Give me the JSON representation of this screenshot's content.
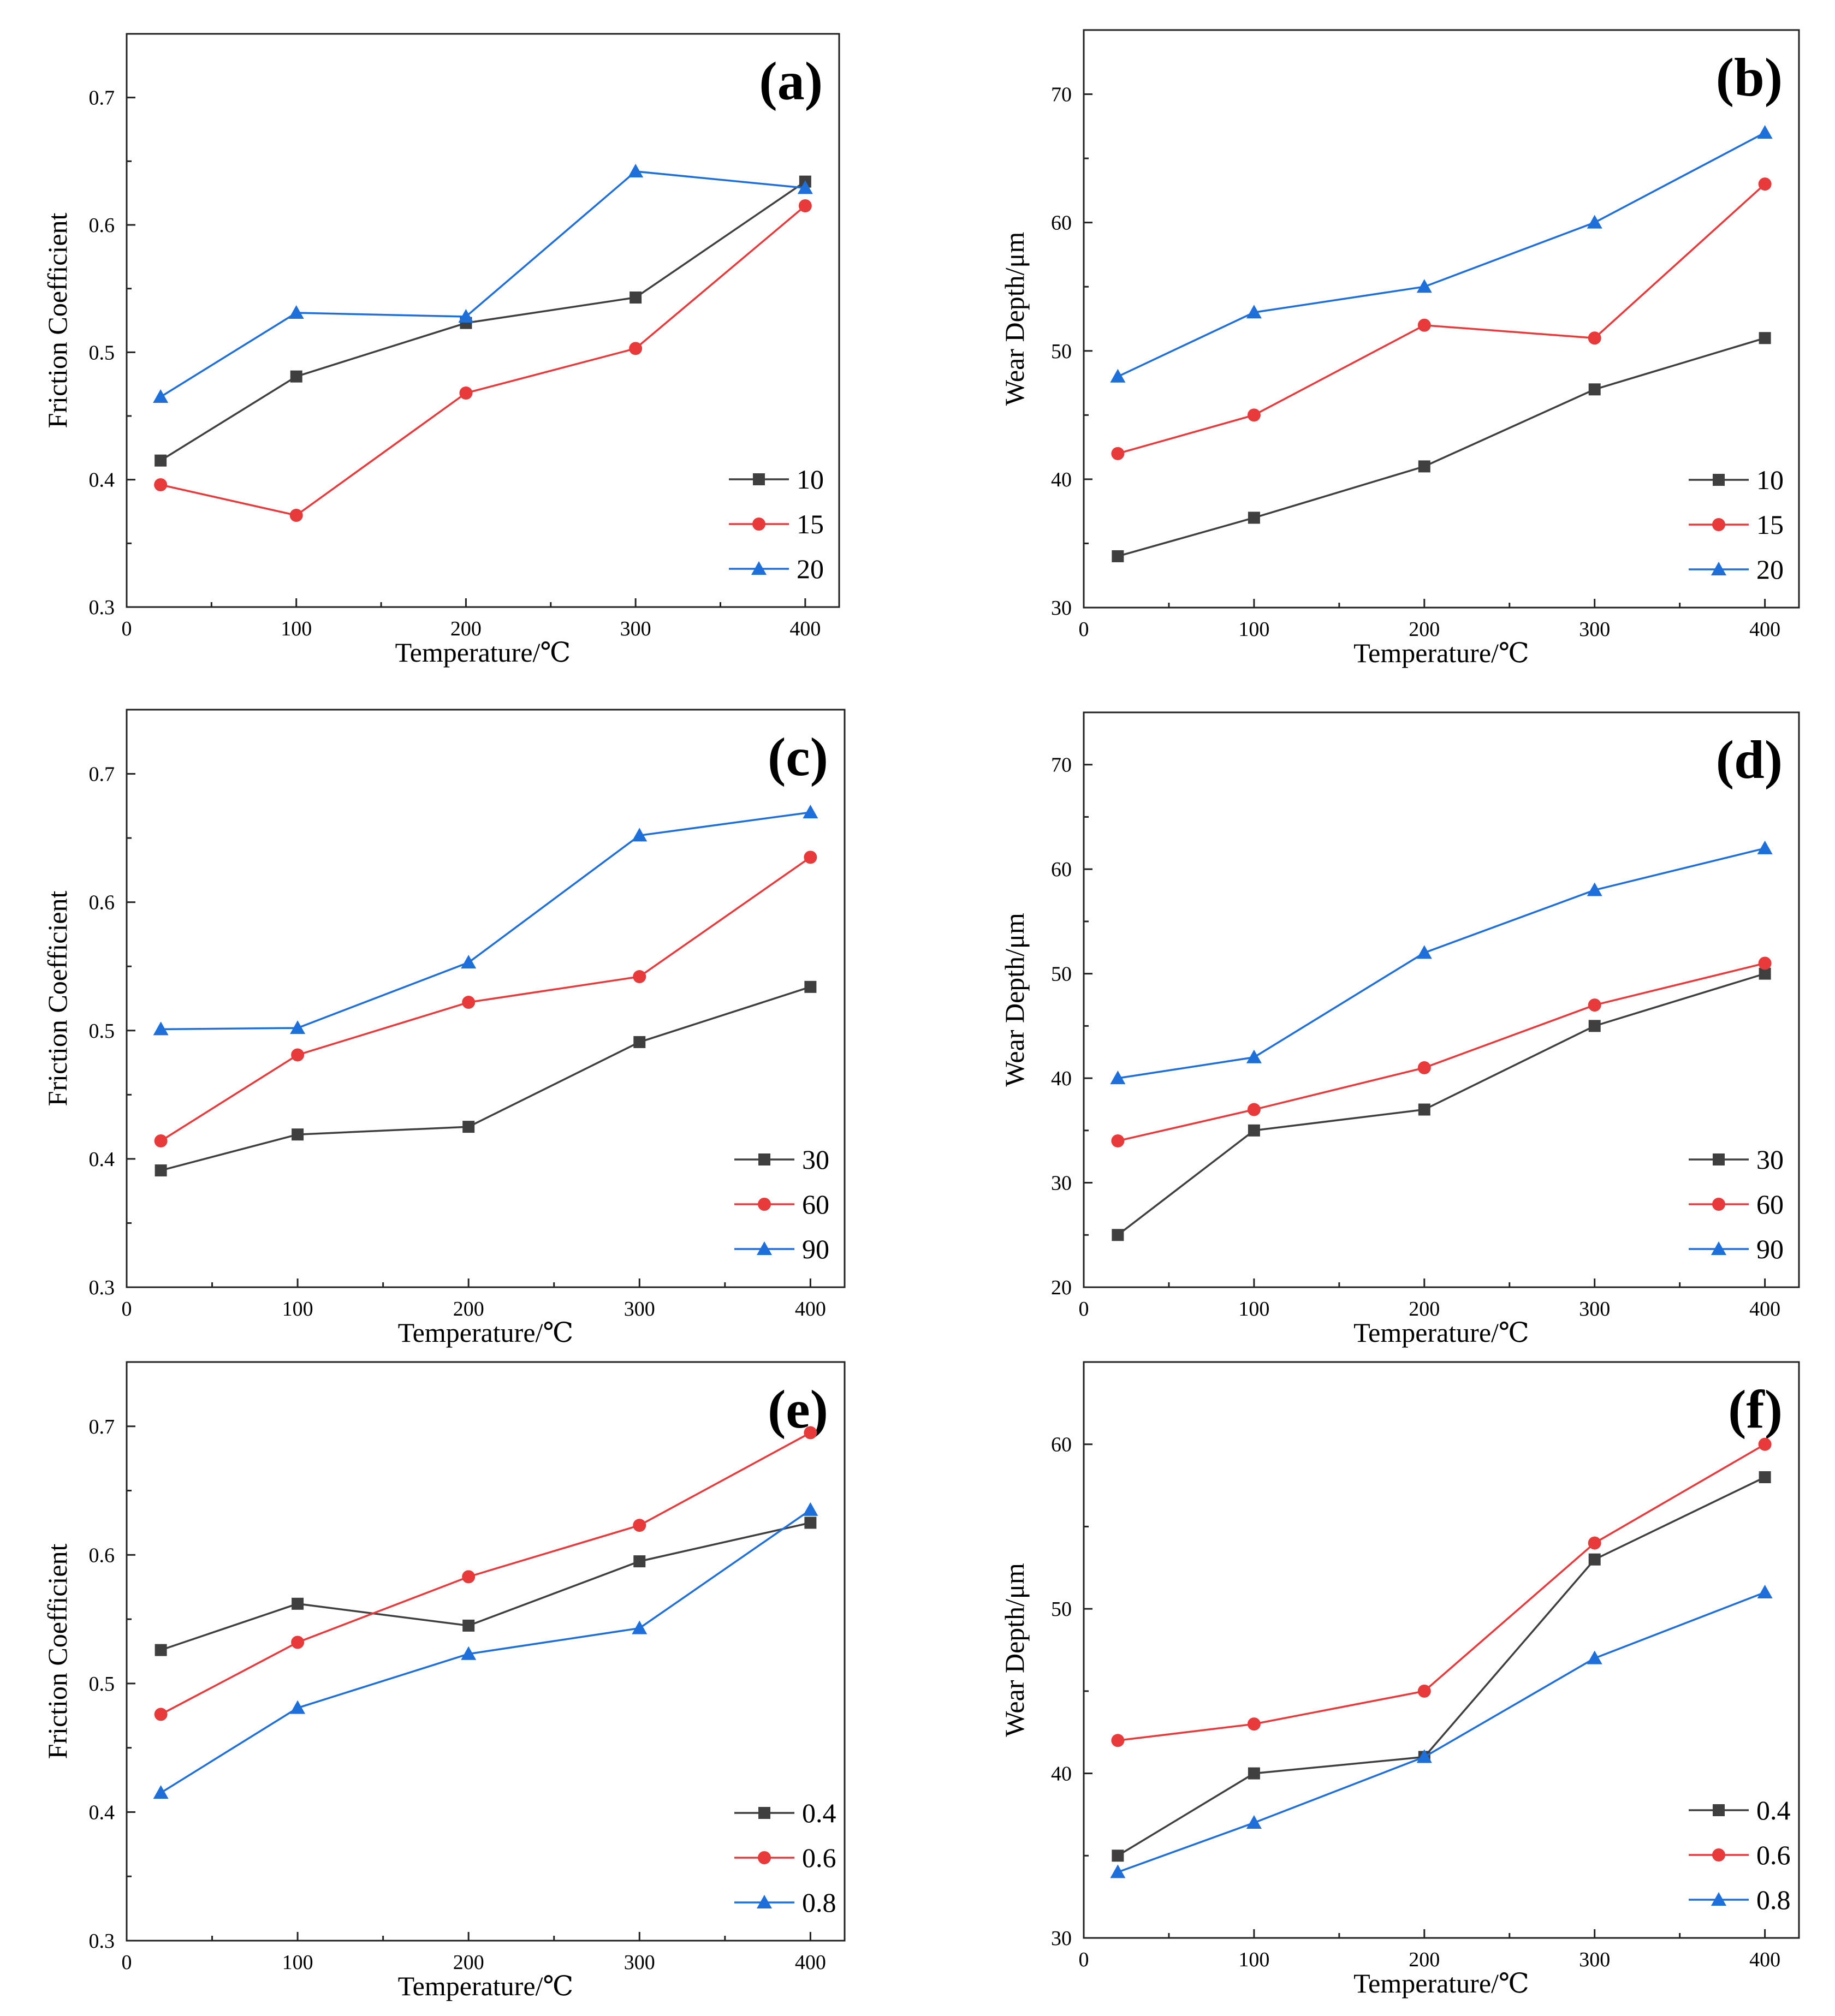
{
  "figure": {
    "background": "#ffffff"
  },
  "colors": {
    "black": "#3f3f3f",
    "red": "#e8393b",
    "blue": "#1e6fd9"
  },
  "chart_data": [
    {
      "panel": "(a)",
      "type": "line",
      "xlabel": "Temperature/℃",
      "ylabel": "Friction Coefficient",
      "xlim": [
        0,
        420
      ],
      "ylim": [
        0.3,
        0.75
      ],
      "xticks": [
        0,
        100,
        200,
        300,
        400
      ],
      "xtick_labels": [
        "0",
        "100",
        "200",
        "300",
        "400"
      ],
      "yticks": [
        0.3,
        0.4,
        0.5,
        0.6,
        0.7
      ],
      "ytick_labels": [
        "0.3",
        "0.4",
        "0.5",
        "0.6",
        "0.7"
      ],
      "x": [
        20,
        100,
        200,
        300,
        400
      ],
      "legend_position": "bottom-right",
      "series": [
        {
          "name": "10",
          "marker": "square",
          "color": "#3f3f3f",
          "values": [
            0.415,
            0.481,
            0.523,
            0.543,
            0.634
          ]
        },
        {
          "name": "15",
          "marker": "circle",
          "color": "#e8393b",
          "values": [
            0.396,
            0.372,
            0.468,
            0.503,
            0.615
          ]
        },
        {
          "name": "20",
          "marker": "triangle",
          "color": "#1e6fd9",
          "values": [
            0.465,
            0.531,
            0.528,
            0.642,
            0.629
          ]
        }
      ]
    },
    {
      "panel": "(b)",
      "type": "line",
      "xlabel": "Temperature/℃",
      "ylabel": "Wear Depth/μm",
      "xlim": [
        0,
        420
      ],
      "ylim": [
        30,
        75
      ],
      "xticks": [
        0,
        100,
        200,
        300,
        400
      ],
      "xtick_labels": [
        "0",
        "100",
        "200",
        "300",
        "400"
      ],
      "yticks": [
        30,
        40,
        50,
        60,
        70
      ],
      "ytick_labels": [
        "30",
        "40",
        "50",
        "60",
        "70"
      ],
      "x": [
        20,
        100,
        200,
        300,
        400
      ],
      "legend_position": "bottom-right",
      "series": [
        {
          "name": "10",
          "marker": "square",
          "color": "#3f3f3f",
          "values": [
            34,
            37,
            41,
            47,
            51
          ]
        },
        {
          "name": "15",
          "marker": "circle",
          "color": "#e8393b",
          "values": [
            42,
            45,
            52,
            51,
            63
          ]
        },
        {
          "name": "20",
          "marker": "triangle",
          "color": "#1e6fd9",
          "values": [
            48,
            53,
            55,
            60,
            67
          ]
        }
      ]
    },
    {
      "panel": "(c)",
      "type": "line",
      "xlabel": "Temperature/℃",
      "ylabel": "Friction Coefficient",
      "xlim": [
        0,
        420
      ],
      "ylim": [
        0.3,
        0.75
      ],
      "xticks": [
        0,
        100,
        200,
        300,
        400
      ],
      "xtick_labels": [
        "0",
        "100",
        "200",
        "300",
        "400"
      ],
      "yticks": [
        0.3,
        0.4,
        0.5,
        0.6,
        0.7
      ],
      "ytick_labels": [
        "0.3",
        "0.4",
        "0.5",
        "0.6",
        "0.7"
      ],
      "x": [
        20,
        100,
        200,
        300,
        400
      ],
      "legend_position": "bottom-right",
      "series": [
        {
          "name": "30",
          "marker": "square",
          "color": "#3f3f3f",
          "values": [
            0.391,
            0.419,
            0.425,
            0.491,
            0.534
          ]
        },
        {
          "name": "60",
          "marker": "circle",
          "color": "#e8393b",
          "values": [
            0.414,
            0.481,
            0.522,
            0.542,
            0.635
          ]
        },
        {
          "name": "90",
          "marker": "triangle",
          "color": "#1e6fd9",
          "values": [
            0.501,
            0.502,
            0.553,
            0.652,
            0.67
          ]
        }
      ]
    },
    {
      "panel": "(d)",
      "type": "line",
      "xlabel": "Temperature/℃",
      "ylabel": "Wear Depth/μm",
      "xlim": [
        0,
        420
      ],
      "ylim": [
        20,
        75
      ],
      "xticks": [
        0,
        100,
        200,
        300,
        400
      ],
      "xtick_labels": [
        "0",
        "100",
        "200",
        "300",
        "400"
      ],
      "yticks": [
        20,
        30,
        40,
        50,
        60,
        70
      ],
      "ytick_labels": [
        "20",
        "30",
        "40",
        "50",
        "60",
        "70"
      ],
      "x": [
        20,
        100,
        200,
        300,
        400
      ],
      "legend_position": "bottom-right",
      "series": [
        {
          "name": "30",
          "marker": "square",
          "color": "#3f3f3f",
          "values": [
            25,
            35,
            37,
            45,
            50
          ]
        },
        {
          "name": "60",
          "marker": "circle",
          "color": "#e8393b",
          "values": [
            34,
            37,
            41,
            47,
            51
          ]
        },
        {
          "name": "90",
          "marker": "triangle",
          "color": "#1e6fd9",
          "values": [
            40,
            42,
            52,
            58,
            62
          ]
        }
      ]
    },
    {
      "panel": "(e)",
      "type": "line",
      "xlabel": "Temperature/℃",
      "ylabel": "Friction Coefficient",
      "xlim": [
        0,
        420
      ],
      "ylim": [
        0.3,
        0.75
      ],
      "xticks": [
        0,
        100,
        200,
        300,
        400
      ],
      "xtick_labels": [
        "0",
        "100",
        "200",
        "300",
        "400"
      ],
      "yticks": [
        0.3,
        0.4,
        0.5,
        0.6,
        0.7
      ],
      "ytick_labels": [
        "0.3",
        "0.4",
        "0.5",
        "0.6",
        "0.7"
      ],
      "x": [
        20,
        100,
        200,
        300,
        400
      ],
      "legend_position": "bottom-right",
      "series": [
        {
          "name": "0.4",
          "marker": "square",
          "color": "#3f3f3f",
          "values": [
            0.526,
            0.562,
            0.545,
            0.595,
            0.625
          ]
        },
        {
          "name": "0.6",
          "marker": "circle",
          "color": "#e8393b",
          "values": [
            0.476,
            0.532,
            0.583,
            0.623,
            0.695
          ]
        },
        {
          "name": "0.8",
          "marker": "triangle",
          "color": "#1e6fd9",
          "values": [
            0.415,
            0.481,
            0.523,
            0.543,
            0.635
          ]
        }
      ]
    },
    {
      "panel": "(f)",
      "type": "line",
      "xlabel": "Temperature/℃",
      "ylabel": "Wear Depth/μm",
      "xlim": [
        0,
        420
      ],
      "ylim": [
        30,
        65
      ],
      "xticks": [
        0,
        100,
        200,
        300,
        400
      ],
      "xtick_labels": [
        "0",
        "100",
        "200",
        "300",
        "400"
      ],
      "yticks": [
        30,
        40,
        50,
        60
      ],
      "ytick_labels": [
        "30",
        "40",
        "50",
        "60"
      ],
      "x": [
        20,
        100,
        200,
        300,
        400
      ],
      "legend_position": "bottom-right",
      "series": [
        {
          "name": "0.4",
          "marker": "square",
          "color": "#3f3f3f",
          "values": [
            35,
            40,
            41,
            53,
            58
          ]
        },
        {
          "name": "0.6",
          "marker": "circle",
          "color": "#e8393b",
          "values": [
            42,
            43,
            45,
            54,
            60
          ]
        },
        {
          "name": "0.8",
          "marker": "triangle",
          "color": "#1e6fd9",
          "values": [
            34,
            37,
            41,
            47,
            51
          ]
        }
      ]
    }
  ]
}
